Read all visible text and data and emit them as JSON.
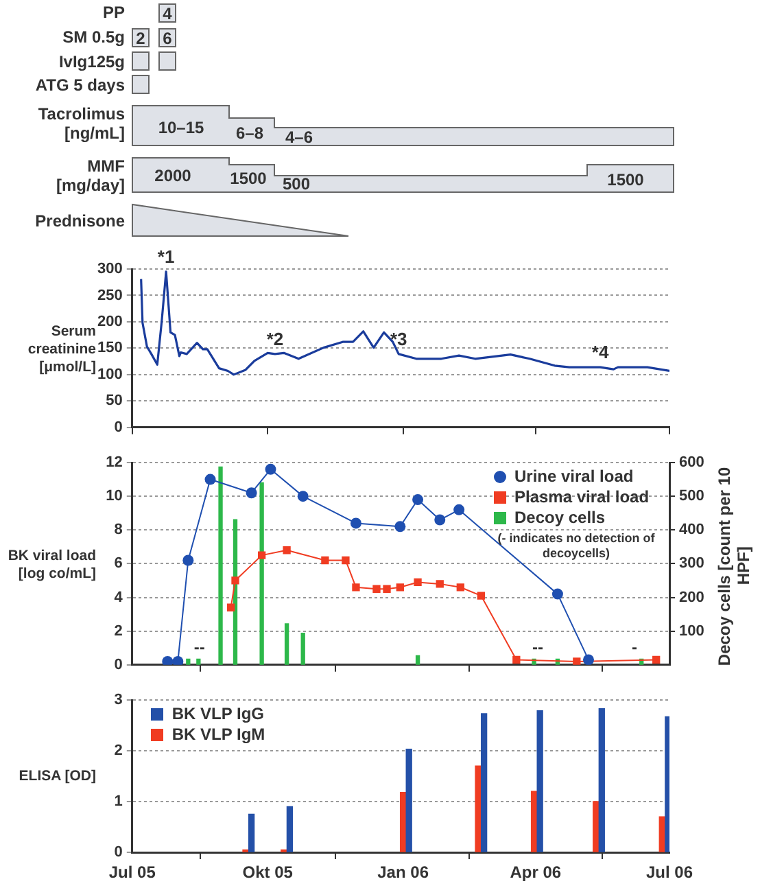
{
  "chart_data": [
    {
      "type": "other",
      "annotations": [
        "PP",
        "4",
        "SM 0.5g",
        "2",
        "6",
        "IvIg125g",
        "ATG 5 days",
        "Tacrolimus [ng/mL]",
        "10–15",
        "6–8",
        "4–6",
        "MMF [mg/day]",
        "2000",
        "1500",
        "500",
        "1500",
        "Prednisone"
      ]
    },
    {
      "type": "line",
      "ylabel": "Serum creatinine [μmol/L]",
      "color": "#1a3c9c",
      "marker": "none",
      "grid": "y",
      "tick_labels": "y",
      "x": [
        "2005-07-07",
        "2005-07-08",
        "2005-07-11",
        "2005-07-14",
        "2005-07-18",
        "2005-07-21",
        "2005-07-24",
        "2005-07-27",
        "2005-07-30",
        "2005-08-02",
        "2005-08-03",
        "2005-08-07",
        "2005-08-14",
        "2005-08-18",
        "2005-08-21",
        "2005-08-29",
        "2005-09-04",
        "2005-09-08",
        "2005-09-16",
        "2005-09-22",
        "2005-10-01",
        "2005-10-06",
        "2005-10-12",
        "2005-10-22",
        "2005-11-08",
        "2005-11-21",
        "2005-11-28",
        "2005-12-05",
        "2005-12-12",
        "2005-12-19",
        "2005-12-25",
        "2005-12-29",
        "2006-01-10",
        "2006-01-27",
        "2006-02-08",
        "2006-02-19",
        "2006-03-15",
        "2006-03-28",
        "2006-04-14",
        "2006-04-24",
        "2006-05-15",
        "2006-05-24",
        "2006-05-27",
        "2006-06-16",
        "2006-07-01"
      ],
      "values": [
        281,
        198,
        153,
        139,
        119,
        200,
        295,
        180,
        175,
        135,
        142,
        139,
        160,
        148,
        148,
        112,
        107,
        100,
        109,
        126,
        141,
        139,
        141,
        130,
        151,
        162,
        162,
        182,
        151,
        180,
        162,
        139,
        130,
        130,
        136,
        130,
        138,
        130,
        117,
        114,
        114,
        110,
        114,
        114,
        107
      ],
      "xlim": [
        "2005-07-01",
        "2006-07-01"
      ],
      "xticks": [
        {
          "value": "2005-07-01",
          "label": null
        },
        {
          "value": "2005-10-01",
          "label": null
        },
        {
          "value": "2006-01-01",
          "label": null
        },
        {
          "value": "2006-04-01",
          "label": null
        },
        {
          "value": "2006-07-01",
          "label": null
        }
      ],
      "ylim": [
        0,
        300
      ],
      "yticks": [
        0,
        50,
        100,
        150,
        200,
        250,
        300
      ],
      "annotations": [
        {
          "text": "*1",
          "x": "2005-07-24",
          "y": 295
        },
        {
          "text": "*2",
          "x": "2005-10-06",
          "y": 139
        },
        {
          "text": "*3",
          "x": "2005-12-29",
          "y": 139
        },
        {
          "text": "*4",
          "x": "2006-05-15",
          "y": 114
        }
      ]
    },
    {
      "type": "line",
      "ylabel": "BK viral load [log co/mL]",
      "y2label": "Decoy cells [count per 10 HPF]",
      "grid": "y",
      "tick_labels": "y",
      "legend": "top right",
      "series": [
        {
          "name": "Urine viral load",
          "color": "#1f4fb0",
          "marker": "circle",
          "x": [
            "2005-07-25",
            "2005-08-01",
            "2005-08-08",
            "2005-08-23",
            "2005-09-20",
            "2005-10-03",
            "2005-10-25",
            "2005-11-30",
            "2005-12-30",
            "2006-01-11",
            "2006-01-26",
            "2006-02-08",
            "2006-04-16",
            "2006-05-07"
          ],
          "values": [
            0.2,
            0.2,
            6.2,
            11.0,
            10.2,
            11.6,
            10.0,
            8.4,
            8.2,
            9.8,
            8.6,
            9.2,
            4.2,
            0.3
          ]
        },
        {
          "name": "Plasma viral load",
          "color": "#f03c22",
          "marker": "square",
          "x": [
            "2005-09-06",
            "2005-09-09",
            "2005-09-27",
            "2005-10-14",
            "2005-11-09",
            "2005-11-23",
            "2005-11-30",
            "2005-12-14",
            "2005-12-21",
            "2005-12-30",
            "2006-01-11",
            "2006-01-26",
            "2006-02-09",
            "2006-02-23",
            "2006-03-19",
            "2006-04-29",
            "2006-06-22"
          ],
          "values": [
            3.4,
            5.0,
            6.5,
            6.8,
            6.2,
            6.2,
            4.6,
            4.5,
            4.5,
            4.6,
            4.9,
            4.8,
            4.6,
            4.1,
            0.3,
            0.2,
            0.3
          ]
        },
        {
          "name": "Decoy cells",
          "color": "#2db84a",
          "type": "bar",
          "axis": "y2",
          "x": [
            "2005-08-08",
            "2005-08-15",
            "2005-08-30",
            "2005-09-09",
            "2005-09-27",
            "2005-10-14",
            "2005-10-25",
            "2006-01-11",
            "2006-03-31",
            "2006-04-16",
            "2006-06-12"
          ],
          "values": [
            17,
            17,
            587,
            431,
            540,
            122,
            94,
            27,
            17,
            17,
            17
          ]
        }
      ],
      "xlim": [
        "2005-07-01",
        "2006-07-01"
      ],
      "xticks": [
        {
          "value": "2005-07-01",
          "label": null
        },
        {
          "value": "2005-10-01",
          "label": null
        },
        {
          "value": "2006-01-01",
          "label": null
        },
        {
          "value": "2006-04-01",
          "label": null
        },
        {
          "value": "2006-07-01",
          "label": null
        }
      ],
      "ylim": [
        0,
        12
      ],
      "yticks": [
        0,
        2,
        4,
        6,
        8,
        10,
        12
      ],
      "y2lim": [
        0,
        600
      ],
      "y2ticks": [
        100,
        200,
        300,
        400,
        500,
        600
      ],
      "annotations": [
        "(- indicates no detection of decoycells)",
        "--",
        "--",
        "-"
      ]
    },
    {
      "type": "bar",
      "ylabel": "ELISA [OD]",
      "grid": "y",
      "legend": "top left",
      "series": [
        {
          "name": "BK VLP IgG",
          "color": "#2450a8",
          "x": [
            "2005-09-20",
            "2005-10-16",
            "2006-01-05",
            "2006-02-25",
            "2006-04-04",
            "2006-05-16",
            "2006-06-30"
          ],
          "values": [
            0.75,
            0.9,
            2.03,
            2.73,
            2.79,
            2.83,
            2.67
          ]
        },
        {
          "name": "BK VLP IgM",
          "color": "#f03c22",
          "x": [
            "2005-09-16",
            "2005-10-12",
            "2006-01-01",
            "2006-02-21",
            "2006-03-31",
            "2006-05-12",
            "2006-06-26"
          ],
          "values": [
            0.05,
            0.05,
            1.18,
            1.7,
            1.2,
            1.0,
            0.7
          ]
        }
      ],
      "xlim": [
        "2005-07-01",
        "2006-07-01"
      ],
      "xticks": [
        {
          "value": "2005-07-01",
          "label": "Jul 05"
        },
        {
          "value": "2005-10-01",
          "label": "Okt 05"
        },
        {
          "value": "2006-01-01",
          "label": "Jan 06"
        },
        {
          "value": "2006-04-01",
          "label": "Apr 06"
        },
        {
          "value": "2006-07-01",
          "label": "Jul 06"
        }
      ],
      "ylim": [
        0,
        3
      ],
      "yticks": [
        0,
        1,
        2,
        3
      ]
    }
  ]
}
